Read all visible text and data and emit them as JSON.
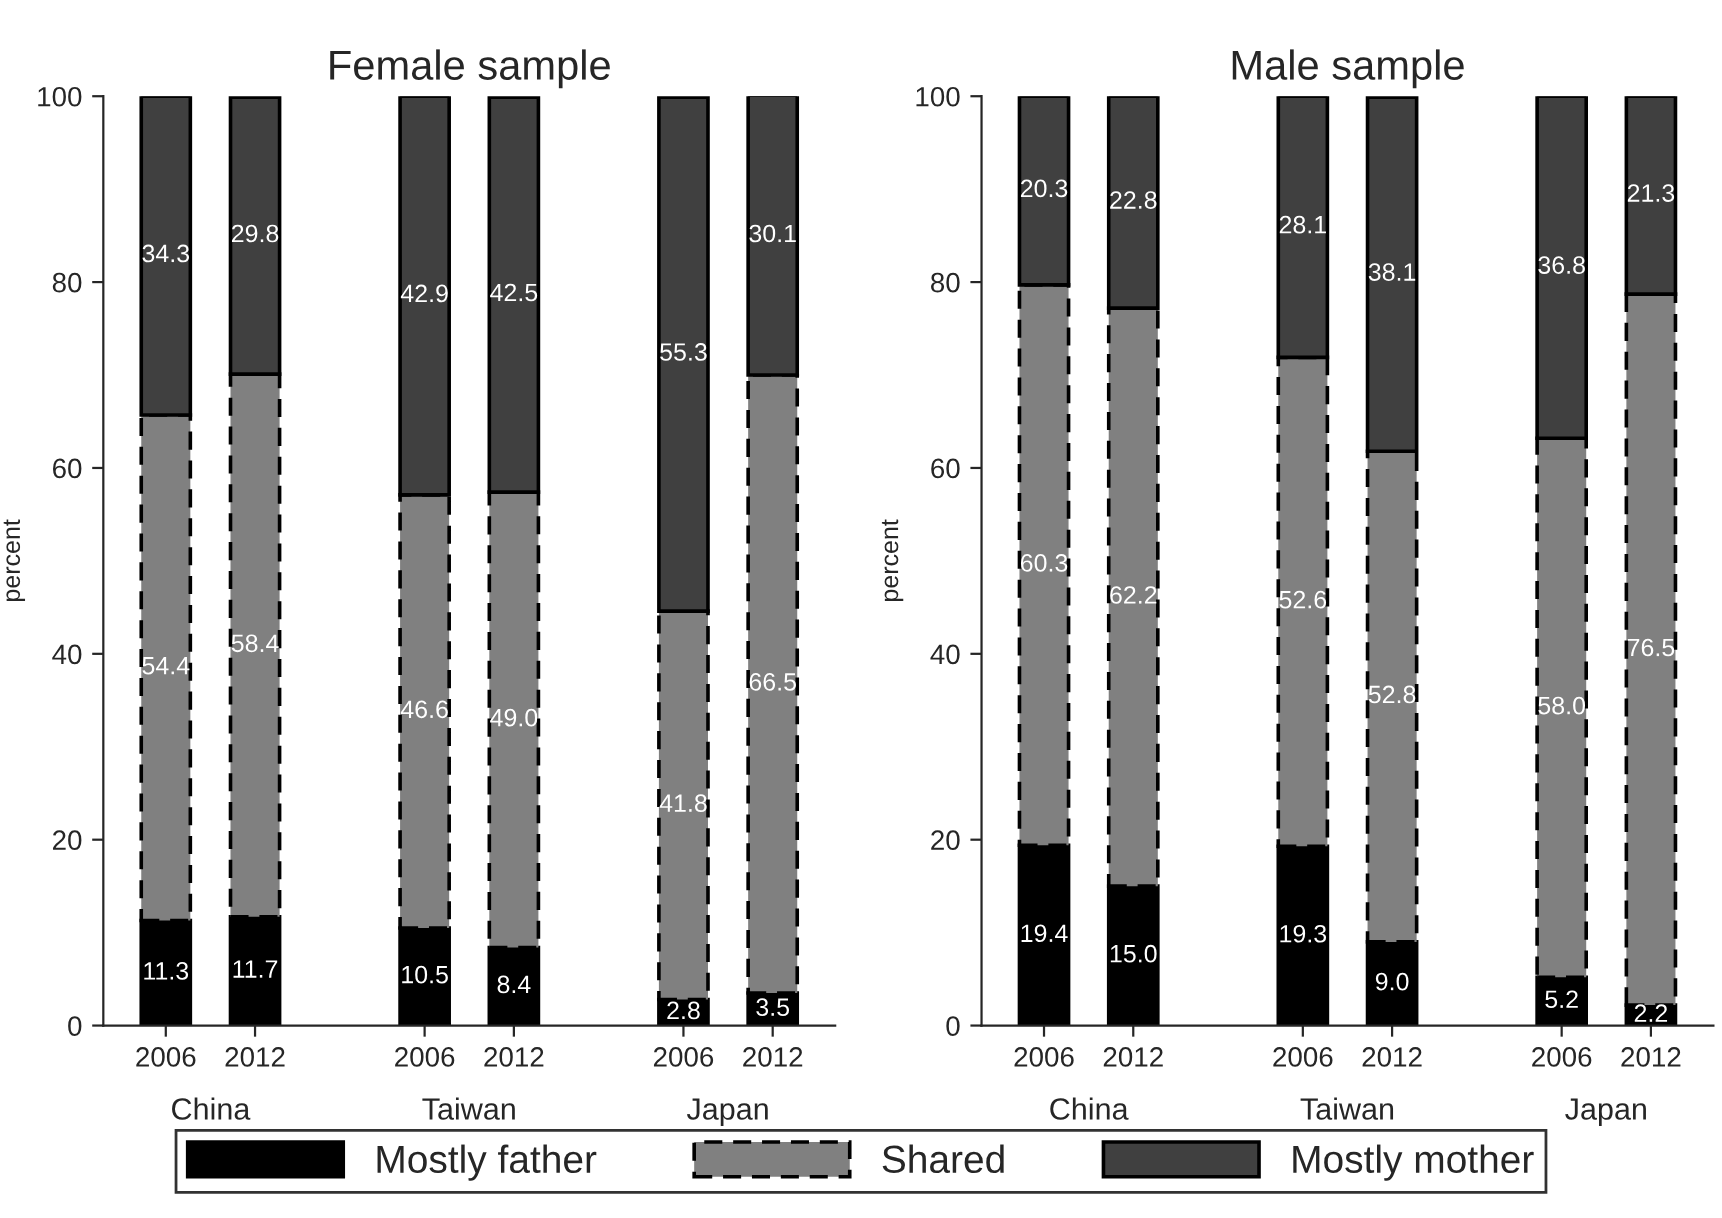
{
  "chart_data": [
    {
      "type": "bar",
      "title": "Female sample",
      "ylabel": "percent",
      "stacked": true,
      "categories": [
        "2006",
        "2012",
        "2006",
        "2012",
        "2006",
        "2012"
      ],
      "annotations": [
        "China",
        "Taiwan",
        "Japan"
      ],
      "ylim": [
        0,
        100
      ],
      "yticks": [
        0,
        20,
        40,
        60,
        80,
        100
      ],
      "grid": false,
      "legend": "bottom",
      "series": [
        {
          "name": "Mostly father",
          "color": "#000000",
          "line_style": "solid",
          "values": [
            11.3,
            11.7,
            10.5,
            8.4,
            2.8,
            3.5
          ],
          "value_labels": [
            "11.3",
            "11.7",
            "10.5",
            "8.4",
            "2.8",
            "3.5"
          ]
        },
        {
          "name": "Shared",
          "color": "#808080",
          "line_style": "dashed",
          "values": [
            54.4,
            58.4,
            46.6,
            49.0,
            41.8,
            66.5
          ],
          "value_labels": [
            "54.4",
            "58.4",
            "46.6",
            "49.0",
            "41.8",
            "66.5"
          ]
        },
        {
          "name": "Mostly mother",
          "color": "#404040",
          "line_style": "solid",
          "values": [
            34.3,
            29.8,
            42.9,
            42.5,
            55.3,
            30.1
          ],
          "value_labels": [
            "34.3",
            "29.8",
            "42.9",
            "42.5",
            "55.3",
            "30.1"
          ]
        }
      ]
    },
    {
      "type": "bar",
      "title": "Male sample",
      "ylabel": "percent",
      "stacked": true,
      "categories": [
        "2006",
        "2012",
        "2006",
        "2012",
        "2006",
        "2012"
      ],
      "annotations": [
        "China",
        "Taiwan",
        "Japan"
      ],
      "ylim": [
        0,
        100
      ],
      "yticks": [
        0,
        20,
        40,
        60,
        80,
        100
      ],
      "grid": false,
      "series": [
        {
          "color": "#000000",
          "line_style": "solid",
          "values": [
            19.4,
            15.0,
            19.3,
            9.0,
            5.2,
            2.2
          ],
          "value_labels": [
            "19.4",
            "15.0",
            "19.3",
            "9.0",
            "5.2",
            "2.2"
          ]
        },
        {
          "color": "#808080",
          "line_style": "dashed",
          "values": [
            60.3,
            62.2,
            52.6,
            52.8,
            58.0,
            76.5
          ],
          "value_labels": [
            "60.3",
            "62.2",
            "52.6",
            "52.8",
            "58.0",
            "76.5"
          ]
        },
        {
          "color": "#404040",
          "line_style": "solid",
          "values": [
            20.3,
            22.8,
            28.1,
            38.1,
            36.8,
            21.3
          ],
          "value_labels": [
            "20.3",
            "22.8",
            "28.1",
            "38.1",
            "36.8",
            "21.3"
          ]
        }
      ]
    }
  ]
}
